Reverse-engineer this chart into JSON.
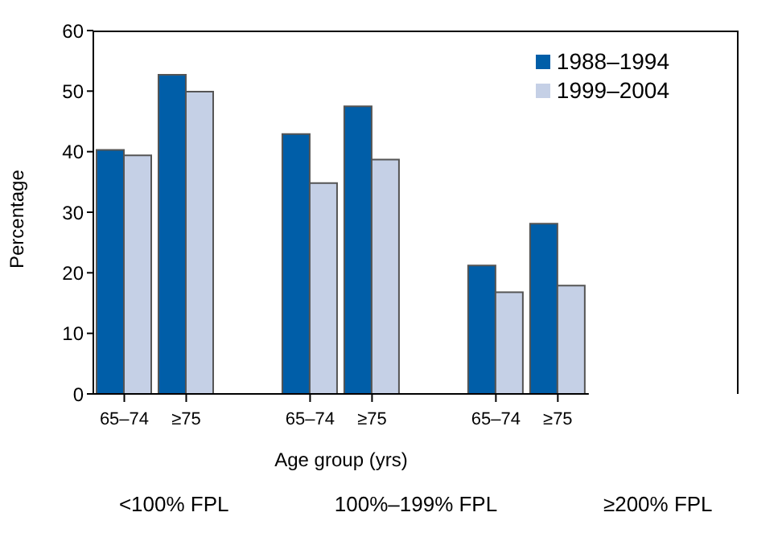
{
  "chart_data": {
    "type": "bar",
    "xlabel": "Age group (yrs)",
    "ylabel": "Percentage",
    "categories": [
      "65–74",
      "≥75",
      null,
      "65–74",
      "≥75",
      null,
      "65–74",
      "≥75"
    ],
    "series": [
      {
        "name": "1988–1994",
        "color": "#005ea8",
        "values": [
          40.3,
          52.7,
          null,
          42.9,
          47.5,
          null,
          21.2,
          28.1
        ]
      },
      {
        "name": "1999–2004",
        "color": "#c5d0e6",
        "values": [
          39.4,
          49.9,
          null,
          34.8,
          38.7,
          null,
          16.8,
          17.9
        ]
      }
    ],
    "ylim": [
      0,
      60
    ],
    "yticks": [
      0,
      10,
      20,
      30,
      40,
      50,
      60
    ],
    "grid": false,
    "legend": "top right",
    "annotations": [
      "<100% FPL",
      "100%–199% FPL",
      "≥200% FPL"
    ]
  }
}
